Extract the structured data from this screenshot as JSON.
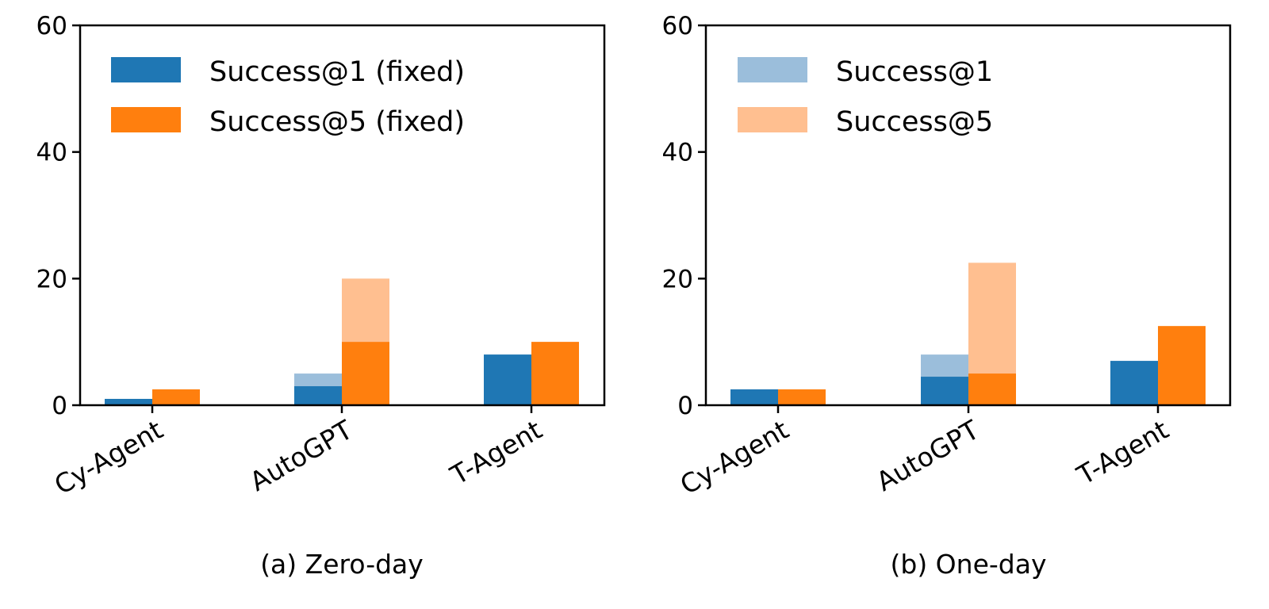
{
  "chart_data": [
    {
      "type": "bar",
      "caption": "(a) Zero-day",
      "categories": [
        "Cy-Agent",
        "AutoGPT",
        "T-Agent"
      ],
      "ylim": [
        0,
        60
      ],
      "yticks": [
        0,
        20,
        40,
        60
      ],
      "legend_position": "top-left",
      "legend": [
        {
          "label": "Success@1 (fixed)",
          "color": "#1f77b4"
        },
        {
          "label": "Success@5 (fixed)",
          "color": "#ff7f0e"
        }
      ],
      "series": [
        {
          "name": "Success@1 (fixed)",
          "color": "#1f77b4",
          "values": [
            1,
            3,
            8
          ]
        },
        {
          "name": "Success@1",
          "color": "#9bbedb",
          "values": [
            1,
            5,
            8
          ]
        },
        {
          "name": "Success@5 (fixed)",
          "color": "#ff7f0e",
          "values": [
            2.5,
            10,
            10
          ]
        },
        {
          "name": "Success@5",
          "color": "#ffbf90",
          "values": [
            2.5,
            20,
            10
          ]
        }
      ]
    },
    {
      "type": "bar",
      "caption": "(b) One-day",
      "categories": [
        "Cy-Agent",
        "AutoGPT",
        "T-Agent"
      ],
      "ylim": [
        0,
        60
      ],
      "yticks": [
        0,
        20,
        40,
        60
      ],
      "legend_position": "top-left",
      "legend": [
        {
          "label": "Success@1",
          "color": "#9bbedb"
        },
        {
          "label": "Success@5",
          "color": "#ffbf90"
        }
      ],
      "series": [
        {
          "name": "Success@1 (fixed)",
          "color": "#1f77b4",
          "values": [
            2.5,
            4.5,
            7
          ]
        },
        {
          "name": "Success@1",
          "color": "#9bbedb",
          "values": [
            2.5,
            8,
            7
          ]
        },
        {
          "name": "Success@5 (fixed)",
          "color": "#ff7f0e",
          "values": [
            2.5,
            5,
            12.5
          ]
        },
        {
          "name": "Success@5",
          "color": "#ffbf90",
          "values": [
            2.5,
            22.5,
            12.5
          ]
        }
      ]
    }
  ]
}
